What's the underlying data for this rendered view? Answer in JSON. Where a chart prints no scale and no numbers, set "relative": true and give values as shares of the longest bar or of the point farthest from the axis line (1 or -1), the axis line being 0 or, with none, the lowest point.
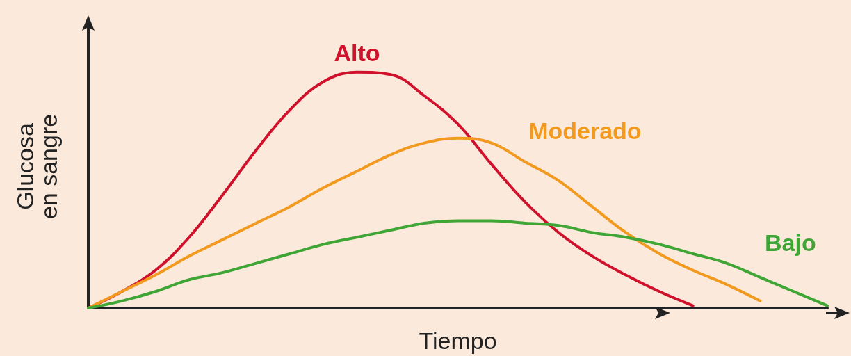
{
  "chart_data": {
    "type": "line",
    "relative": true,
    "xlabel": "Tiempo",
    "ylabel": "Glucosa\nen sangre",
    "legend": false,
    "grid": false,
    "marker": "none",
    "line_style": "solid",
    "tick_labels": false,
    "categories": [
      null,
      null,
      null,
      null,
      null,
      null,
      null,
      null,
      null,
      null,
      null,
      null,
      null,
      null,
      null,
      null,
      null,
      null,
      null,
      null,
      null,
      null,
      null
    ],
    "series": [
      {
        "name": "Alto",
        "color": "#d0112b",
        "values": [
          0,
          0.07,
          0.16,
          0.3,
          0.48,
          0.67,
          0.84,
          0.96,
          1,
          0.99,
          0.9,
          0.78,
          0.61,
          0.45,
          0.32,
          0.22,
          0.14,
          0.07,
          0.01,
          null,
          null,
          null,
          null
        ]
      },
      {
        "name": "Moderado",
        "color": "#f29a1f",
        "values": [
          0,
          0.07,
          0.14,
          0.22,
          0.29,
          0.36,
          0.43,
          0.51,
          0.58,
          0.65,
          0.7,
          0.72,
          0.7,
          0.62,
          0.54,
          0.43,
          0.32,
          0.23,
          0.16,
          0.1,
          0.03,
          null,
          null
        ]
      },
      {
        "name": "Bajo",
        "color": "#3fa535",
        "values": [
          0,
          0.03,
          0.07,
          0.12,
          0.15,
          0.19,
          0.23,
          0.27,
          0.3,
          0.33,
          0.36,
          0.37,
          0.37,
          0.36,
          0.35,
          0.32,
          0.3,
          0.27,
          0.23,
          0.19,
          0.13,
          0.07,
          0.01
        ]
      }
    ]
  }
}
